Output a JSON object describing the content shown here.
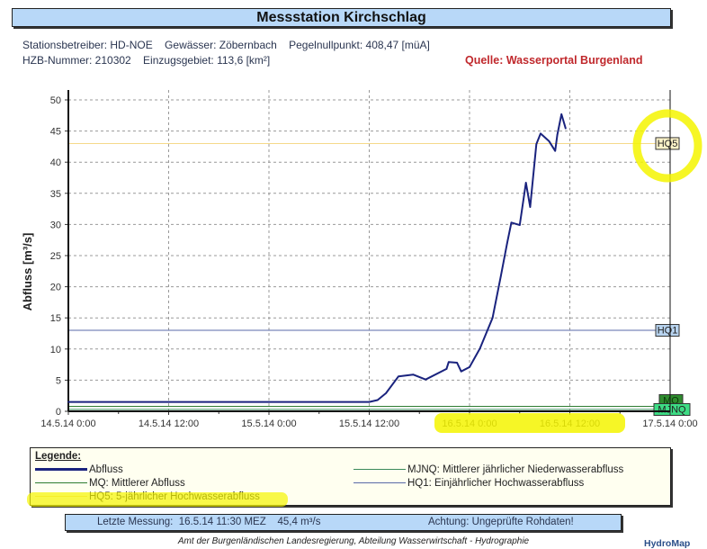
{
  "header": {
    "title": "Messstation Kirchschlag",
    "info_line1": "Stationsbetreiber: HD-NOE    Gewässer: Zöbernbach    Pegelnullpunkt: 408,47 [müA]",
    "info_line2": "HZB-Nummer: 210302    Einzugsgebiet: 113,6 [km²]",
    "source": "Quelle: Wasserportal Burgenland"
  },
  "chart_data": {
    "type": "line",
    "title": "",
    "ylabel": "Abfluss [m³/s]",
    "xlabel": "",
    "ylim": [
      0,
      50
    ],
    "yticks": [
      "0",
      "5",
      "10",
      "15",
      "20",
      "25",
      "30",
      "35",
      "40",
      "45",
      "50"
    ],
    "xlim": [
      "14.5.14 0:00",
      "17.5.14 0:00"
    ],
    "xticks": [
      "14.5.14 0:00",
      "14.5.14 12:00",
      "15.5.14 0:00",
      "15.5.14 12:00",
      "16.5.14 0:00",
      "16.5.14 12:00",
      "17.5.14 0:00"
    ],
    "grid": true,
    "series": [
      {
        "name": "Abfluss",
        "color": "#1a237e",
        "points": [
          [
            "14.5.14 0:00",
            1.5
          ],
          [
            "15.5.14 12:00",
            1.5
          ],
          [
            "15.5.14 13:00",
            1.8
          ],
          [
            "15.5.14 14:00",
            2.9
          ],
          [
            "15.5.14 15:30",
            5.6
          ],
          [
            "15.5.14 17:15",
            5.9
          ],
          [
            "15.5.14 18:45",
            5.1
          ],
          [
            "15.5.14 21:15",
            6.8
          ],
          [
            "15.5.14 21:30",
            7.9
          ],
          [
            "15.5.14 22:30",
            7.8
          ],
          [
            "15.5.14 23:00",
            6.4
          ],
          [
            "16.5.14 0:00",
            7.1
          ],
          [
            "16.5.14 1:15",
            10.1
          ],
          [
            "16.5.14 2:45",
            15.0
          ],
          [
            "16.5.14 3:45",
            21.7
          ],
          [
            "16.5.14 4:30",
            27.0
          ],
          [
            "16.5.14 5:00",
            30.3
          ],
          [
            "16.5.14 6:00",
            29.9
          ],
          [
            "16.5.14 6:45",
            36.7
          ],
          [
            "16.5.14 7:15",
            32.8
          ],
          [
            "16.5.14 8:00",
            42.9
          ],
          [
            "16.5.14 8:30",
            44.6
          ],
          [
            "16.5.14 9:30",
            43.4
          ],
          [
            "16.5.14 10:15",
            41.8
          ],
          [
            "16.5.14 10:30",
            44.4
          ],
          [
            "16.5.14 11:00",
            47.7
          ],
          [
            "16.5.14 11:30",
            45.4
          ]
        ]
      }
    ],
    "reference_lines": [
      {
        "label": "HQ5",
        "value": 43,
        "color": "#f5d98a",
        "box_color": "#fdf3c8"
      },
      {
        "label": "HQ1",
        "value": 13,
        "color": "#5a6aa8",
        "box_color": "#b8d4f0"
      },
      {
        "label": "MQ",
        "value": 0.8,
        "color": "#2e7d32",
        "box_color": "#2e8b2e"
      },
      {
        "label": "MJNQ",
        "value": 0.3,
        "color": "#3a8a5a",
        "box_color": "#3ddc84"
      }
    ]
  },
  "legend": {
    "title": "Legende:",
    "items": [
      {
        "label": "Abfluss",
        "color": "#1a237e"
      },
      {
        "label": "MJNQ: Mittlerer jährlicher Niederwasserabfluss",
        "color": "#3a8a5a"
      },
      {
        "label": "MQ: Mittlerer Abfluss",
        "color": "#2e7d32"
      },
      {
        "label": "HQ1: Einjährlicher Hochwasserabfluss",
        "color": "#5a6aa8"
      },
      {
        "label": "HQ5: 5-jährlicher Hochwasserabfluss",
        "color": "#f5d98a"
      }
    ]
  },
  "status": {
    "last_measurement": "Letzte Messung:  16.5.14 11:30 MEZ    45,4 m³/s",
    "warning": "Achtung: Ungeprüfte Rohdaten!"
  },
  "footer": {
    "text": "Amt der Burgenländischen Landesregierung, Abteilung Wasserwirtschaft - Hydrographie",
    "logo": "HydroMap"
  },
  "colors": {
    "highlight": "#f5f500",
    "title_bar": "#b8d8f8"
  }
}
